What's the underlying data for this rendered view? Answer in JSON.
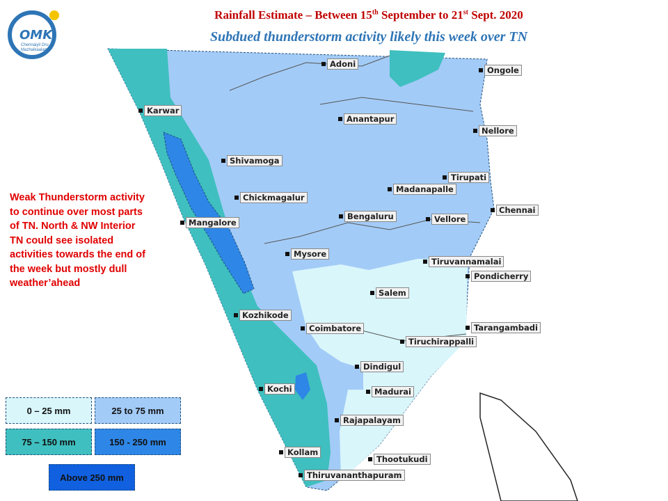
{
  "logo": {
    "mark": "OMK",
    "caption": "Chennaiyil Oru Mazhaikaalam"
  },
  "header": {
    "title": [
      "Rainfall Estimate – Between  15",
      "th",
      " September to 21",
      "st",
      " Sept. 2020"
    ],
    "subtitle": "Subdued thunderstorm activity likely this week over TN"
  },
  "note": [
    "Weak Thunderstorm activity",
    "to continue over most parts",
    "of TN.  North & NW Interior",
    "TN could see isolated",
    "activities towards the end of",
    "the week but mostly dull",
    "weather’ahead"
  ],
  "legend": [
    "0 – 25 mm",
    "25 to  75 mm",
    "75 – 150 mm",
    "150 - 250 mm",
    "Above 250 mm"
  ],
  "cities": [
    "Adoni",
    "Ongole",
    "Karwar",
    "Anantapur",
    "Nellore",
    "Shivamoga",
    "Tirupati",
    "Madanapalle",
    "Chickmagalur",
    "Chennai",
    "Bengaluru",
    "Vellore",
    "Mangalore",
    "Mysore",
    "Tiruvannamalai",
    "Pondicherry",
    "Salem",
    "Kozhikode",
    "Coimbatore",
    "Tarangambadi",
    "Tiruchirappalli",
    "Dindigul",
    "Kochi",
    "Madurai",
    "Rajapalayam",
    "Kollam",
    "Thootukudi",
    "Thiruvananthapuram"
  ]
}
